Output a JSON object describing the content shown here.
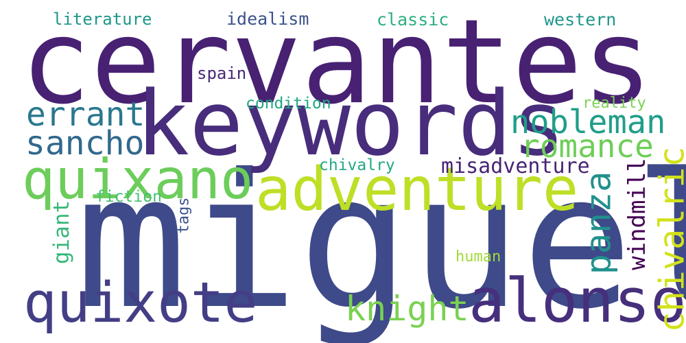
{
  "words": [
    {
      "text": "cervantes",
      "color": "#482173",
      "orientation": "horizontal"
    },
    {
      "text": "miguel",
      "color": "#3e4a89",
      "orientation": "horizontal"
    },
    {
      "text": "keywords",
      "color": "#472d7b",
      "orientation": "horizontal"
    },
    {
      "text": "adventure",
      "color": "#bddf26",
      "orientation": "horizontal"
    },
    {
      "text": "alonso",
      "color": "#462f7c",
      "orientation": "horizontal"
    },
    {
      "text": "quixote",
      "color": "#433e85",
      "orientation": "horizontal"
    },
    {
      "text": "quixano",
      "color": "#6ccd5a",
      "orientation": "horizontal"
    },
    {
      "text": "errant",
      "color": "#2a788e",
      "orientation": "horizontal"
    },
    {
      "text": "sancho",
      "color": "#31688e",
      "orientation": "horizontal"
    },
    {
      "text": "nobleman",
      "color": "#1f9e89",
      "orientation": "horizontal"
    },
    {
      "text": "romance",
      "color": "#6ece58",
      "orientation": "horizontal"
    },
    {
      "text": "misadventure",
      "color": "#482475",
      "orientation": "horizontal"
    },
    {
      "text": "knight",
      "color": "#7ad151",
      "orientation": "horizontal"
    },
    {
      "text": "panza",
      "color": "#21918c",
      "orientation": "vertical"
    },
    {
      "text": "windmill",
      "color": "#440154",
      "orientation": "vertical"
    },
    {
      "text": "chivalric",
      "color": "#d2e21b",
      "orientation": "vertical"
    },
    {
      "text": "giant",
      "color": "#35b779",
      "orientation": "vertical"
    },
    {
      "text": "tags",
      "color": "#3b528b",
      "orientation": "vertical"
    },
    {
      "text": "literature",
      "color": "#1f968b",
      "orientation": "horizontal"
    },
    {
      "text": "idealism",
      "color": "#3b528b",
      "orientation": "horizontal"
    },
    {
      "text": "classic",
      "color": "#2ab07f",
      "orientation": "horizontal"
    },
    {
      "text": "western",
      "color": "#1f968b",
      "orientation": "horizontal"
    },
    {
      "text": "spain",
      "color": "#482878",
      "orientation": "horizontal"
    },
    {
      "text": "condition",
      "color": "#22a884",
      "orientation": "horizontal"
    },
    {
      "text": "reality",
      "color": "#7ad151",
      "orientation": "horizontal"
    },
    {
      "text": "chivalry",
      "color": "#22a884",
      "orientation": "horizontal"
    },
    {
      "text": "fiction",
      "color": "#44bf70",
      "orientation": "horizontal"
    },
    {
      "text": "human",
      "color": "#a0da39",
      "orientation": "horizontal"
    }
  ]
}
